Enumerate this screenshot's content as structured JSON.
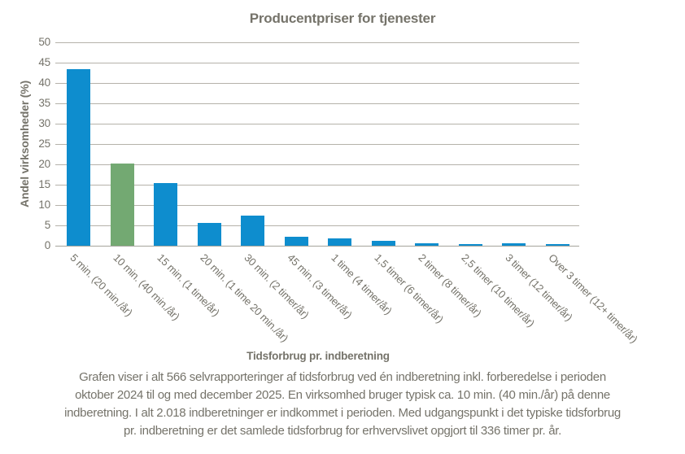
{
  "chart": {
    "title": "Producentpriser for tjenester",
    "y_axis_title": "Andel virksomheder (%)",
    "x_axis_title": "Tidsforbrug pr. indberetning"
  },
  "chart_data": {
    "type": "bar",
    "title": "Producentpriser for tjenester",
    "xlabel": "Tidsforbrug pr. indberetning",
    "ylabel": "Andel virksomheder (%)",
    "ylim": [
      0,
      50
    ],
    "ytick_step": 5,
    "grid": true,
    "legend_position": "none",
    "categories": [
      "5 min. (20 min./år)",
      "10 min. (40 min./år)",
      "15 min. (1 time/år)",
      "20 min. (1 time 20 min./år)",
      "30 min. (2 timer/år)",
      "45 min. (3 timer/år)",
      "1 time (4 timer/år)",
      "1,5 timer (6 timer/år)",
      "2 timer (8 timer/år)",
      "2,5 timer (10 timer/år)",
      "3 timer (12 timer/år)",
      "Over 3 timer (12+ timer/år)"
    ],
    "values": [
      43.5,
      20.3,
      15.4,
      5.7,
      7.4,
      2.3,
      1.9,
      1.2,
      0.7,
      0.4,
      0.7,
      0.4
    ],
    "highlighted_category_index": 1,
    "highlight_meaning": "typical time spent (10 min.)"
  },
  "colors": {
    "bar_default": "#0e8dce",
    "bar_highlight": "#73a972",
    "text": "#75736a",
    "grid": "#b5b2aa",
    "axis_line": "#a6a49c"
  },
  "footer": {
    "lines": [
      "Grafen viser i alt 566 selvrapporteringer af tidsforbrug ved én indberetning inkl. forberedelse i perioden",
      "oktober 2024 til og med december 2025. En virksomhed bruger typisk ca. 10 min. (40 min./år) på denne",
      "indberetning. I alt 2.018 indberetninger er indkommet i perioden. Med udgangspunkt i det typiske tidsforbrug",
      "pr. indberetning er det samlede tidsforbrug for erhvervslivet opgjort til 336 timer pr. år."
    ]
  }
}
